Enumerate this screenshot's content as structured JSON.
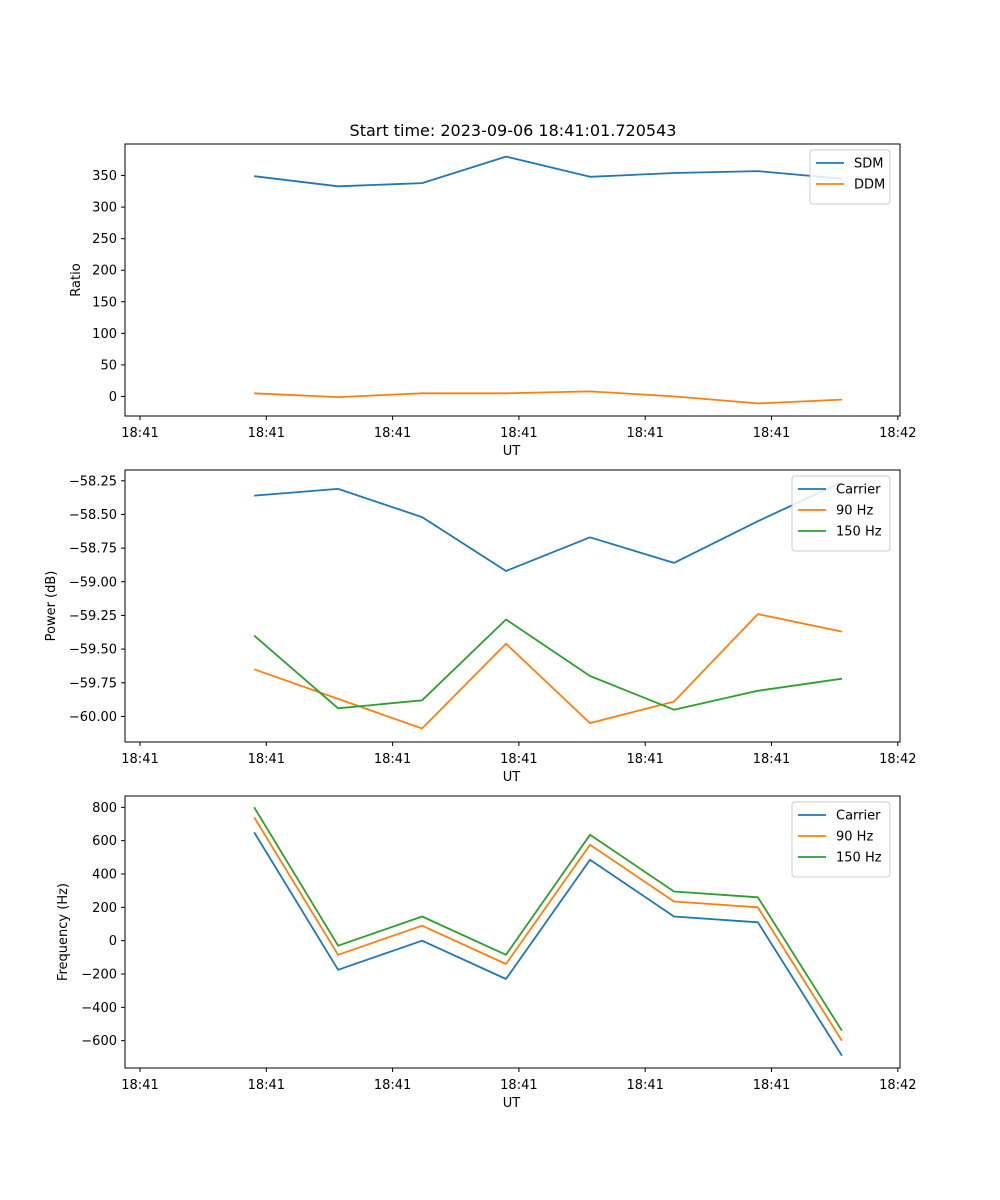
{
  "figure_title": "Start time: 2023-09-06 18:41:01.720543",
  "chart_data": [
    {
      "type": "line",
      "ylabel": "Ratio",
      "xlabel": "UT",
      "x_ticks": [
        "18:41",
        "18:41",
        "18:41",
        "18:41",
        "18:41",
        "18:41",
        "18:42"
      ],
      "y_ticks": [
        0,
        50,
        100,
        150,
        200,
        250,
        300,
        350
      ],
      "y_tick_labels": [
        "0",
        "50",
        "100",
        "150",
        "200",
        "250",
        "300",
        "350"
      ],
      "ylim": [
        -31,
        400
      ],
      "xlim": [
        -0.5,
        5.5
      ],
      "legend_position": "top-right",
      "x": [
        0.5,
        1.15,
        1.8,
        2.45,
        3.1,
        3.75,
        4.4,
        5.05
      ],
      "series": [
        {
          "name": "SDM",
          "color": "#1f77b4",
          "values": [
            349,
            333,
            338,
            380,
            348,
            354,
            357,
            345
          ]
        },
        {
          "name": "DDM",
          "color": "#ff7f0e",
          "values": [
            5,
            -1,
            5,
            5,
            8,
            0,
            -11,
            -5
          ]
        }
      ]
    },
    {
      "type": "line",
      "ylabel": "Power (dB)",
      "xlabel": "UT",
      "x_ticks": [
        "18:41",
        "18:41",
        "18:41",
        "18:41",
        "18:41",
        "18:41",
        "18:42"
      ],
      "y_ticks": [
        -60.0,
        -59.75,
        -59.5,
        -59.25,
        -59.0,
        -58.75,
        -58.5,
        -58.25
      ],
      "y_tick_labels": [
        "−60.00",
        "−59.75",
        "−59.50",
        "−59.25",
        "−59.00",
        "−58.75",
        "−58.50",
        "−58.25"
      ],
      "ylim": [
        -60.19,
        -58.17
      ],
      "xlim": [
        -0.5,
        5.5
      ],
      "legend_position": "top-right",
      "x": [
        0.5,
        1.15,
        1.8,
        2.45,
        3.1,
        3.75,
        4.4,
        5.05
      ],
      "series": [
        {
          "name": "Carrier",
          "color": "#1f77b4",
          "values": [
            -58.36,
            -58.31,
            -58.52,
            -58.92,
            -58.67,
            -58.86,
            -58.55,
            -58.26
          ]
        },
        {
          "name": "90 Hz",
          "color": "#ff7f0e",
          "values": [
            -59.65,
            -59.87,
            -60.09,
            -59.46,
            -60.05,
            -59.89,
            -59.24,
            -59.37
          ]
        },
        {
          "name": "150 Hz",
          "color": "#2ca02c",
          "values": [
            -59.4,
            -59.94,
            -59.88,
            -59.28,
            -59.7,
            -59.95,
            -59.81,
            -59.72
          ]
        }
      ]
    },
    {
      "type": "line",
      "ylabel": "Frequency (Hz)",
      "xlabel": "UT",
      "x_ticks": [
        "18:41",
        "18:41",
        "18:41",
        "18:41",
        "18:41",
        "18:41",
        "18:42"
      ],
      "y_ticks": [
        -600,
        -400,
        -200,
        0,
        200,
        400,
        600,
        800
      ],
      "y_tick_labels": [
        "−600",
        "−400",
        "−200",
        "0",
        "200",
        "400",
        "600",
        "800"
      ],
      "ylim": [
        -764,
        868
      ],
      "xlim": [
        -0.5,
        5.5
      ],
      "legend_position": "top-right",
      "x": [
        0.5,
        1.15,
        1.8,
        2.45,
        3.1,
        3.75,
        4.4,
        5.05
      ],
      "series": [
        {
          "name": "Carrier",
          "color": "#1f77b4",
          "values": [
            650,
            -175,
            0,
            -230,
            485,
            145,
            110,
            -690
          ]
        },
        {
          "name": "90 Hz",
          "color": "#ff7f0e",
          "values": [
            740,
            -85,
            90,
            -140,
            575,
            235,
            200,
            -600
          ]
        },
        {
          "name": "150 Hz",
          "color": "#2ca02c",
          "values": [
            800,
            -30,
            145,
            -85,
            635,
            295,
            260,
            -540
          ]
        }
      ]
    }
  ]
}
